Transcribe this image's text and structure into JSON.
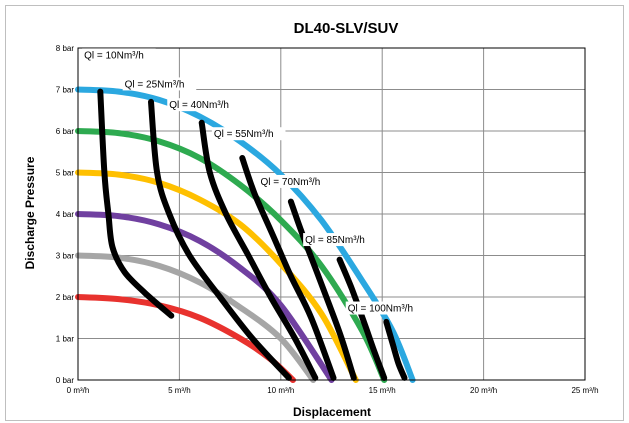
{
  "chart_data": {
    "type": "line",
    "title": "DL40-SLV/SUV",
    "xlabel": "Displacement",
    "ylabel": "Discharge Pressure",
    "xlim": [
      0,
      25
    ],
    "ylim": [
      0,
      8
    ],
    "x_ticks": [
      0,
      5,
      10,
      15,
      20,
      25
    ],
    "y_ticks": [
      0,
      1,
      2,
      3,
      4,
      5,
      6,
      7,
      8
    ],
    "x_tick_labels": [
      "0 m³/h",
      "5 m³/h",
      "10 m³/h",
      "15 m³/h",
      "20 m³/h",
      "25 m³/h"
    ],
    "y_tick_labels": [
      "0 bar",
      "1 bar",
      "2 bar",
      "3 bar",
      "4 bar",
      "5 bar",
      "6 bar",
      "7 bar",
      "8 bar"
    ],
    "grid": true,
    "pressure_curves": [
      {
        "color": "#e8322e",
        "points": [
          [
            0,
            2.0
          ],
          [
            2,
            1.95
          ],
          [
            4,
            1.8
          ],
          [
            6,
            1.5
          ],
          [
            8,
            1.0
          ],
          [
            9.5,
            0.5
          ],
          [
            10.6,
            0
          ]
        ]
      },
      {
        "color": "#a6a6a6",
        "points": [
          [
            0,
            3.0
          ],
          [
            2,
            2.95
          ],
          [
            4,
            2.75
          ],
          [
            6,
            2.35
          ],
          [
            8,
            1.75
          ],
          [
            10,
            1.0
          ],
          [
            11.6,
            0
          ]
        ]
      },
      {
        "color": "#7040a0",
        "points": [
          [
            0,
            4.0
          ],
          [
            2,
            3.95
          ],
          [
            4,
            3.75
          ],
          [
            6,
            3.35
          ],
          [
            8,
            2.7
          ],
          [
            10,
            1.8
          ],
          [
            12.5,
            0
          ]
        ]
      },
      {
        "color": "#ffc000",
        "points": [
          [
            0,
            5.0
          ],
          [
            2,
            4.95
          ],
          [
            4,
            4.75
          ],
          [
            6,
            4.35
          ],
          [
            8,
            3.75
          ],
          [
            10,
            2.8
          ],
          [
            12,
            1.6
          ],
          [
            13.7,
            0
          ]
        ]
      },
      {
        "color": "#2eaa50",
        "points": [
          [
            0,
            6.0
          ],
          [
            2,
            5.95
          ],
          [
            4,
            5.75
          ],
          [
            6,
            5.35
          ],
          [
            8,
            4.7
          ],
          [
            10,
            3.85
          ],
          [
            12,
            2.75
          ],
          [
            14,
            1.2
          ],
          [
            15.1,
            0
          ]
        ]
      },
      {
        "color": "#2ba8e0",
        "points": [
          [
            0,
            7.0
          ],
          [
            2,
            6.95
          ],
          [
            4,
            6.75
          ],
          [
            6,
            6.35
          ],
          [
            8,
            5.75
          ],
          [
            10,
            4.95
          ],
          [
            12,
            3.85
          ],
          [
            14,
            2.4
          ],
          [
            15.5,
            1.2
          ],
          [
            16.5,
            0
          ]
        ]
      }
    ],
    "flow_curves": [
      {
        "name": "Ql = 10Nm³/h",
        "color": "#000000",
        "points": [
          [
            1.1,
            6.95
          ],
          [
            1.3,
            5.0
          ],
          [
            1.5,
            4.0
          ],
          [
            1.7,
            3.2
          ],
          [
            2.3,
            2.6
          ],
          [
            3.3,
            2.1
          ],
          [
            4.6,
            1.55
          ]
        ]
      },
      {
        "name": "Ql = 25Nm³/h",
        "color": "#000000",
        "points": [
          [
            3.6,
            6.7
          ],
          [
            3.9,
            5.0
          ],
          [
            4.5,
            4.0
          ],
          [
            5.5,
            3.0
          ],
          [
            7,
            2.0
          ],
          [
            8.6,
            1.0
          ],
          [
            10.4,
            0.05
          ]
        ]
      },
      {
        "name": "Ql = 40Nm³/h",
        "color": "#000000",
        "points": [
          [
            6.1,
            6.2
          ],
          [
            6.5,
            5.0
          ],
          [
            7.3,
            4.0
          ],
          [
            8.4,
            3.0
          ],
          [
            9.5,
            2.0
          ],
          [
            10.7,
            1.0
          ],
          [
            11.7,
            0.05
          ]
        ]
      },
      {
        "name": "Ql = 55Nm³/h",
        "color": "#000000",
        "points": [
          [
            8.1,
            5.35
          ],
          [
            8.7,
            4.5
          ],
          [
            9.6,
            3.5
          ],
          [
            10.5,
            2.5
          ],
          [
            11.5,
            1.5
          ],
          [
            12.6,
            0.05
          ]
        ]
      },
      {
        "name": "Ql = 70Nm³/h",
        "color": "#000000",
        "points": [
          [
            10.5,
            4.3
          ],
          [
            11.0,
            3.6
          ],
          [
            11.7,
            2.7
          ],
          [
            12.4,
            1.8
          ],
          [
            13.0,
            1.0
          ],
          [
            13.6,
            0.05
          ]
        ]
      },
      {
        "name": "Ql = 85Nm³/h",
        "color": "#000000",
        "points": [
          [
            12.9,
            2.9
          ],
          [
            13.5,
            2.2
          ],
          [
            14.1,
            1.4
          ],
          [
            14.6,
            0.7
          ],
          [
            15.1,
            0.05
          ]
        ]
      },
      {
        "name": "Ql = 100Nm³/h",
        "color": "#000000",
        "points": [
          [
            15.2,
            1.4
          ],
          [
            15.5,
            0.9
          ],
          [
            15.8,
            0.4
          ],
          [
            16.1,
            0.05
          ]
        ]
      }
    ],
    "labels": [
      {
        "text": "Ql = 10Nm³/h",
        "x": 0.3,
        "y": 7.75
      },
      {
        "text": "Ql = 25Nm³/h",
        "x": 2.3,
        "y": 7.05
      },
      {
        "text": "Ql = 40Nm³/h",
        "x": 4.5,
        "y": 6.55
      },
      {
        "text": "Ql = 55Nm³/h",
        "x": 6.7,
        "y": 5.85
      },
      {
        "text": "Ql = 70Nm³/h",
        "x": 9.0,
        "y": 4.7
      },
      {
        "text": "Ql = 85Nm³/h",
        "x": 11.2,
        "y": 3.3
      },
      {
        "text": "Ql = 100Nm³/h",
        "x": 13.3,
        "y": 1.65
      }
    ]
  }
}
